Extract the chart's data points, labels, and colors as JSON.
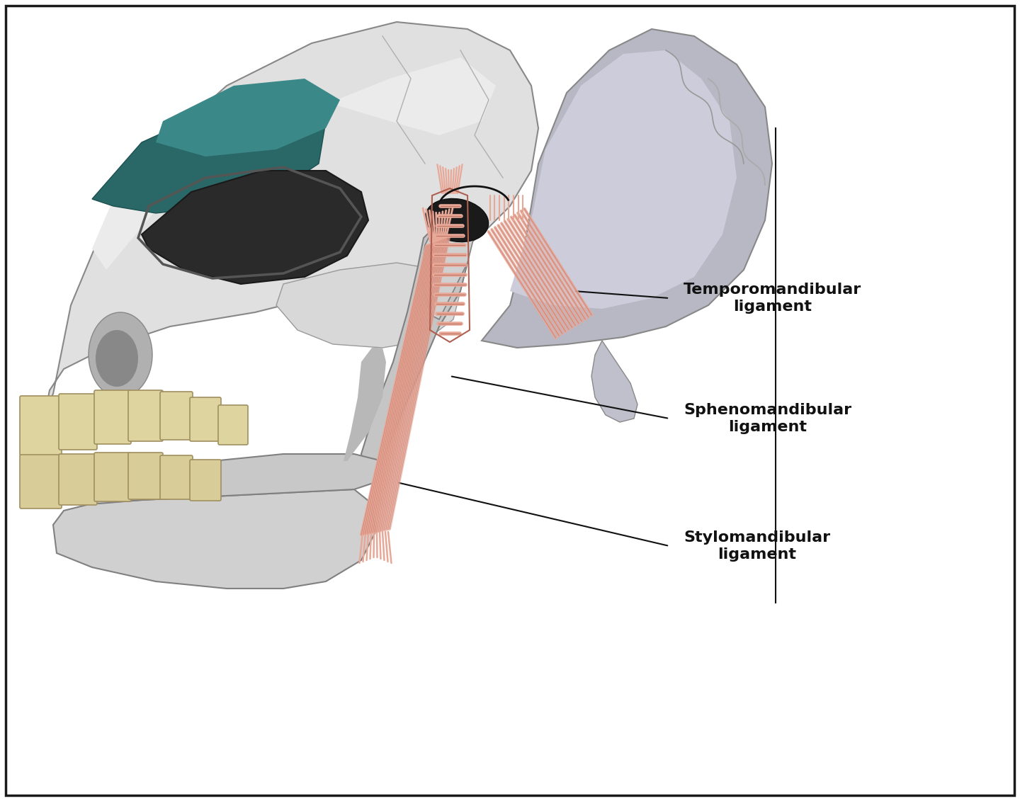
{
  "background_color": "#ffffff",
  "border_color": "#1a1a1a",
  "label1": "Temporomandibular\nligament",
  "label2": "Sphenomandibular\nligament",
  "label3": "Stylomandibular\nligament",
  "label_fontsize": 16,
  "label_fontweight": "bold",
  "line_color": "#111111",
  "skull_light": "#e0e0e0",
  "skull_mid": "#c8c8c8",
  "skull_dark": "#a8a8a8",
  "skull_white": "#f0f0f0",
  "temporal_fill": "#b0b0c0",
  "temporal_light": "#d0d0e0",
  "teal_dark": "#2a6868",
  "teal_mid": "#3a8888",
  "tooth_fill": "#ddd4a0",
  "tooth_edge": "#a09060",
  "ligament_fill": "#e8a898",
  "ligament_edge": "#b06050",
  "jaw_fill": "#c0c0c0",
  "jaw_dark": "#909090"
}
